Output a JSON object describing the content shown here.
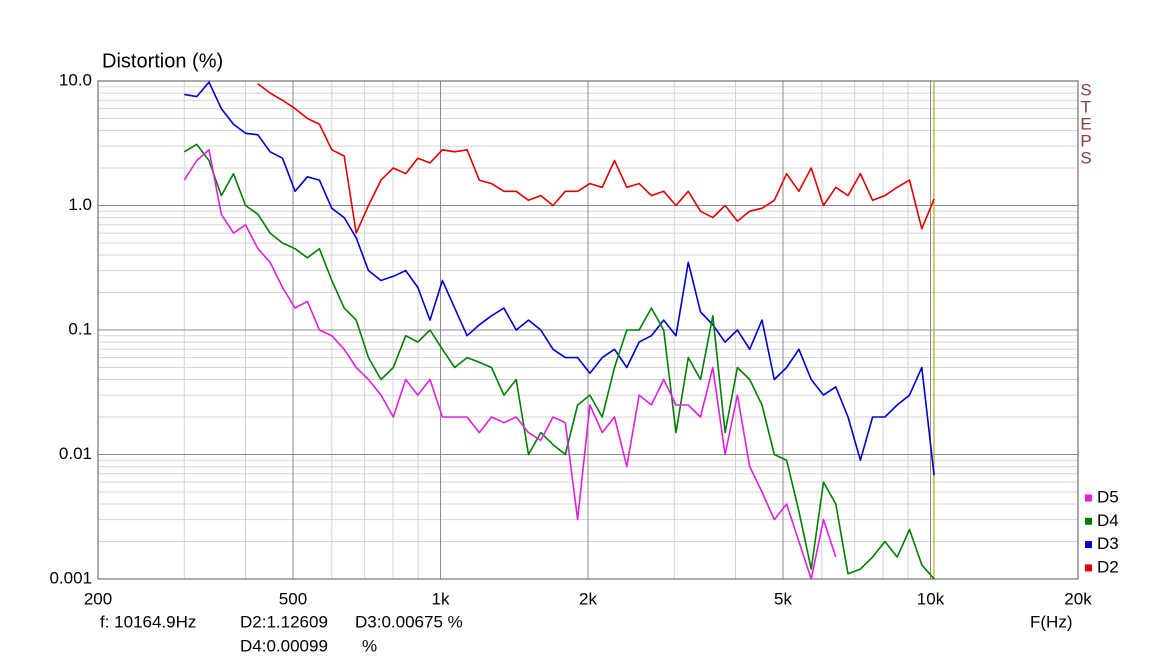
{
  "chart_data": {
    "type": "line",
    "title": "Distortion (%)",
    "x_label": "F(Hz)",
    "side_label": "STEPS",
    "x": [
      300,
      318,
      337,
      357,
      378,
      400,
      424,
      449,
      476,
      505,
      535,
      566,
      600,
      636,
      673,
      713,
      756,
      801,
      849,
      899,
      952,
      1009,
      1069,
      1133,
      1200,
      1271,
      1347,
      1427,
      1512,
      1602,
      1697,
      1798,
      1905,
      2018,
      2138,
      2265,
      2400,
      2543,
      2694,
      2854,
      3024,
      3204,
      3394,
      3596,
      3810,
      4036,
      4276,
      4531,
      4800,
      5086,
      5388,
      5708,
      6048,
      6407,
      6788,
      7192,
      7619,
      8072,
      8552,
      9061,
      9600,
      10170
    ],
    "series": [
      {
        "name": "D5",
        "color": "#e020e0",
        "values": [
          1.6,
          2.3,
          2.8,
          0.85,
          0.6,
          0.7,
          0.45,
          0.35,
          0.22,
          0.15,
          0.17,
          0.1,
          0.09,
          0.07,
          0.05,
          0.04,
          0.03,
          0.02,
          0.04,
          0.03,
          0.04,
          0.02,
          0.02,
          0.02,
          0.015,
          0.02,
          0.018,
          0.02,
          0.015,
          0.013,
          0.02,
          0.018,
          0.003,
          0.025,
          0.015,
          0.02,
          0.008,
          0.03,
          0.025,
          0.04,
          0.025,
          0.025,
          0.02,
          0.05,
          0.01,
          0.03,
          0.008,
          0.005,
          0.003,
          0.004,
          0.002,
          0.001,
          0.003,
          0.0015,
          null,
          null,
          null,
          null,
          null,
          null,
          null,
          null
        ]
      },
      {
        "name": "D4",
        "color": "#008000",
        "values": [
          2.7,
          3.1,
          2.3,
          1.2,
          1.8,
          1.0,
          0.85,
          0.6,
          0.5,
          0.45,
          0.38,
          0.45,
          0.25,
          0.15,
          0.12,
          0.06,
          0.04,
          0.05,
          0.09,
          0.08,
          0.1,
          0.07,
          0.05,
          0.06,
          0.055,
          0.05,
          0.03,
          0.04,
          0.01,
          0.015,
          0.012,
          0.01,
          0.025,
          0.03,
          0.02,
          0.05,
          0.1,
          0.1,
          0.15,
          0.1,
          0.015,
          0.06,
          0.04,
          0.13,
          0.015,
          0.05,
          0.04,
          0.025,
          0.01,
          0.009,
          0.0035,
          0.0012,
          0.006,
          0.004,
          0.0011,
          0.0012,
          0.0015,
          0.002,
          0.0015,
          0.0025,
          0.0013,
          0.001
        ]
      },
      {
        "name": "D3",
        "color": "#0000d0",
        "values": [
          7.8,
          7.5,
          9.8,
          6,
          4.5,
          3.8,
          3.7,
          2.7,
          2.4,
          1.3,
          1.7,
          1.6,
          0.95,
          0.8,
          0.55,
          0.3,
          0.25,
          0.27,
          0.3,
          0.22,
          0.12,
          0.25,
          0.15,
          0.09,
          0.11,
          0.13,
          0.15,
          0.1,
          0.12,
          0.1,
          0.07,
          0.06,
          0.06,
          0.045,
          0.06,
          0.07,
          0.05,
          0.08,
          0.09,
          0.12,
          0.09,
          0.35,
          0.14,
          0.11,
          0.08,
          0.1,
          0.07,
          0.12,
          0.04,
          0.05,
          0.07,
          0.04,
          0.03,
          0.035,
          0.02,
          0.009,
          0.02,
          0.02,
          0.025,
          0.03,
          0.05,
          0.0068
        ]
      },
      {
        "name": "D2",
        "color": "#e00000",
        "values": [
          null,
          null,
          null,
          null,
          null,
          null,
          9.5,
          8,
          7,
          6,
          5,
          4.5,
          2.8,
          2.5,
          0.6,
          1.0,
          1.6,
          2.0,
          1.8,
          2.4,
          2.2,
          2.8,
          2.7,
          2.8,
          1.6,
          1.5,
          1.3,
          1.3,
          1.1,
          1.2,
          1.0,
          1.3,
          1.3,
          1.5,
          1.4,
          2.3,
          1.4,
          1.5,
          1.2,
          1.3,
          1.0,
          1.3,
          0.9,
          0.8,
          1.0,
          0.75,
          0.9,
          0.95,
          1.1,
          1.8,
          1.3,
          2.0,
          1.0,
          1.4,
          1.2,
          1.8,
          1.1,
          1.2,
          1.4,
          1.6,
          0.65,
          1.13
        ]
      }
    ],
    "xlim": [
      200,
      20000
    ],
    "ylim": [
      0.001,
      10
    ],
    "xticks": [
      200,
      500,
      {
        "value": 1000,
        "label": "1k"
      },
      {
        "value": 2000,
        "label": "2k"
      },
      {
        "value": 5000,
        "label": "5k"
      },
      {
        "value": 10000,
        "label": "10k"
      },
      {
        "value": 20000,
        "label": "20k"
      }
    ],
    "yticks": [
      0.001,
      0.01,
      0.1,
      {
        "value": 1,
        "label": "1.0"
      },
      {
        "value": 10,
        "label": "10.0"
      }
    ],
    "log_x": true,
    "log_y": true,
    "grid": true,
    "minor_grid": true,
    "legend": "lower right",
    "cursor": {
      "x": 10164.9,
      "color": "#c8b848",
      "readout": [
        "f: 10164.9Hz",
        "D2:1.12609",
        "D3:0.00675 %",
        "D4:0.00099",
        "%"
      ]
    }
  }
}
